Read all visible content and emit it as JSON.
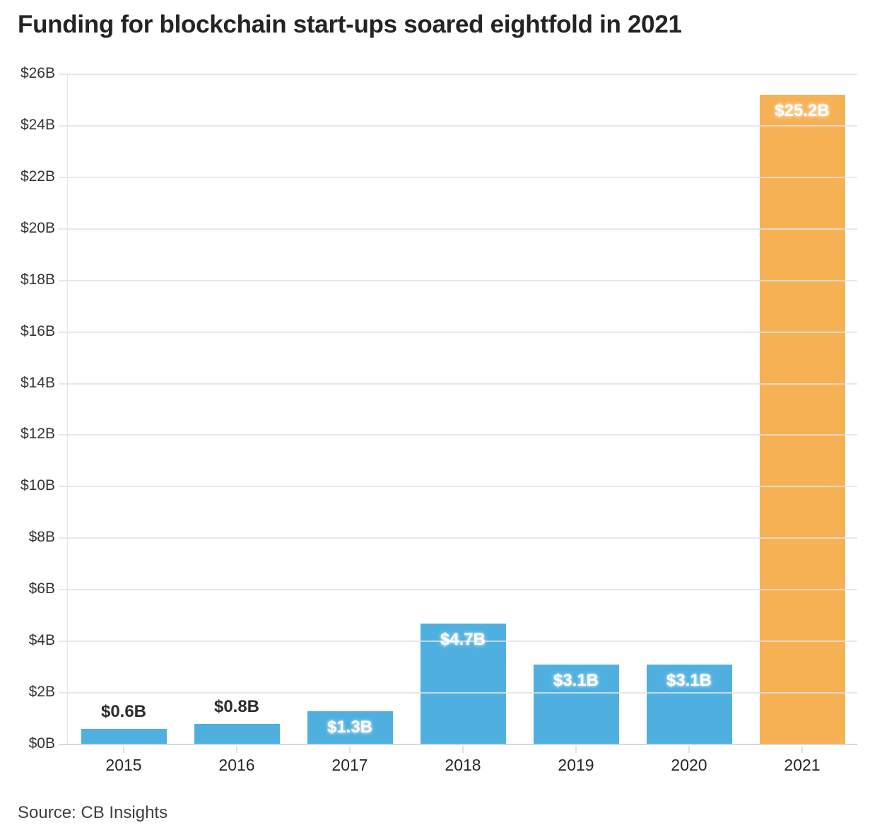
{
  "title": "Funding for blockchain start-ups soared eightfold in 2021",
  "source": "Source: CB Insights",
  "colors": {
    "bar": "#4FB0E0",
    "highlight": "#F7B155",
    "title_text": "#242424",
    "axis_text": "#333333",
    "gridline": "#e2e2e2"
  },
  "chart_data": {
    "type": "bar",
    "title": "Funding for blockchain start-ups soared eightfold in 2021",
    "source": "Source: CB Insights",
    "categories": [
      "2015",
      "2016",
      "2017",
      "2018",
      "2019",
      "2020",
      "2021"
    ],
    "values": [
      0.6,
      0.8,
      1.3,
      4.7,
      3.1,
      3.1,
      25.2
    ],
    "value_labels": [
      "$0.6B",
      "$0.8B",
      "$1.3B",
      "$4.7B",
      "$3.1B",
      "$3.1B",
      "$25.2B"
    ],
    "label_placement": [
      "above",
      "above",
      "inside",
      "inside",
      "inside",
      "inside",
      "inside"
    ],
    "highlight_category": "2021",
    "bar_color": "#4FB0E0",
    "highlight_color": "#F7B155",
    "xlabel": "",
    "ylabel": "",
    "ylim": [
      0,
      26
    ],
    "ytick_step": 2,
    "ytick_labels": [
      "$0B",
      "$2B",
      "$4B",
      "$6B",
      "$8B",
      "$10B",
      "$12B",
      "$14B",
      "$16B",
      "$18B",
      "$20B",
      "$22B",
      "$24B",
      "$26B"
    ],
    "grid": "horizontal",
    "legend": "none"
  }
}
